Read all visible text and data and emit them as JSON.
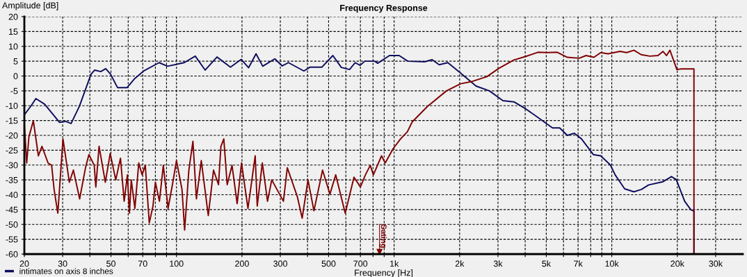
{
  "chart_data": {
    "type": "line",
    "title": "Frequency Response",
    "xlabel": "Frequency [Hz]",
    "ylabel": "Amplitude [dB]",
    "log": "x",
    "grid": true,
    "legend": "bottom left",
    "line_style": "solid",
    "marker": "none",
    "xlim": [
      20,
      40000
    ],
    "ylim": [
      -60,
      20
    ],
    "xticks": [
      20,
      30,
      {
        "value": 40,
        "label": null
      },
      50,
      {
        "value": 60,
        "label": null
      },
      70,
      {
        "value": 80,
        "label": null
      },
      {
        "value": 90,
        "label": null
      },
      100,
      200,
      300,
      {
        "value": 400,
        "label": null
      },
      500,
      {
        "value": 600,
        "label": null
      },
      700,
      {
        "value": 800,
        "label": null
      },
      {
        "value": 900,
        "label": null
      },
      {
        "value": 1000,
        "label": "1k"
      },
      {
        "value": 2000,
        "label": "2k"
      },
      {
        "value": 3000,
        "label": "3k"
      },
      {
        "value": 4000,
        "label": null
      },
      {
        "value": 5000,
        "label": "5k"
      },
      {
        "value": 6000,
        "label": null
      },
      {
        "value": 7000,
        "label": "7k"
      },
      {
        "value": 8000,
        "label": null
      },
      {
        "value": 9000,
        "label": null
      },
      {
        "value": 10000,
        "label": "10k"
      },
      {
        "value": 20000,
        "label": "20k"
      },
      {
        "value": 30000,
        "label": "30k"
      }
    ],
    "yticks": [
      -60,
      -55,
      -50,
      -45,
      -40,
      -35,
      -30,
      -25,
      -20,
      -15,
      -10,
      -5,
      0,
      5,
      10,
      15,
      20
    ],
    "ref_lines": [
      {
        "axis": "x",
        "value": 857,
        "label": "Gating",
        "color": "#800000"
      }
    ],
    "series": [
      {
        "name": "intimates on axis 8 inches",
        "color": "#0d0d5e",
        "x": [
          20,
          21.5,
          22.6,
          24.8,
          29,
          31,
          32.8,
          35.8,
          40.5,
          42.1,
          44.9,
          47.3,
          49.8,
          53.6,
          59.3,
          64,
          71,
          83.2,
          91,
          108.5,
          122,
          135.5,
          153.5,
          177,
          198.5,
          214.5,
          232,
          249,
          283,
          306,
          327,
          385,
          411,
          466,
          523,
          572,
          624,
          662,
          698,
          733,
          814,
          840,
          952,
          1055,
          1155,
          1380,
          1495,
          1610,
          1765,
          2020,
          2380,
          2740,
          3160,
          3550,
          4030,
          4570,
          5340,
          5760,
          6250,
          6730,
          7260,
          8240,
          8900,
          9860,
          10360,
          11460,
          12640,
          13680,
          14770,
          17200,
          18790,
          19780,
          21620,
          23050,
          23850,
          23850
        ],
        "values": [
          -13.1,
          -10,
          -7.6,
          -9.5,
          -15.6,
          -15.3,
          -16,
          -10.2,
          0.6,
          2,
          1.5,
          2.5,
          0.6,
          -3.9,
          -3.9,
          -1,
          1.8,
          4.5,
          3.3,
          4.5,
          6.7,
          2,
          6.4,
          3,
          5.6,
          2.8,
          7.5,
          3.3,
          5.8,
          3.4,
          4.5,
          1.7,
          3,
          3,
          6.9,
          2.9,
          2.2,
          4.5,
          3.6,
          5,
          5,
          4.3,
          6.9,
          6.9,
          5,
          4.8,
          5.5,
          3.8,
          4.5,
          1,
          -3.4,
          -5,
          -8.3,
          -8.7,
          -11.1,
          -13.9,
          -17.5,
          -17.5,
          -20,
          -19.3,
          -21.2,
          -26.5,
          -26.9,
          -30,
          -33.3,
          -38,
          -39,
          -38.2,
          -36.7,
          -35.6,
          -33.9,
          -34.9,
          -42.2,
          -45,
          -45.5,
          -60
        ]
      },
      {
        "color": "#800000",
        "x": [
          20,
          20.5,
          21,
          22,
          23.2,
          24.1,
          25.7,
          26.7,
          27.4,
          28.5,
          30.1,
          32.2,
          33.6,
          35.9,
          38.2,
          39.6,
          41.9,
          42.6,
          44.1,
          47.1,
          49.6,
          52.6,
          55.3,
          57.5,
          59.5,
          60.8,
          62,
          64.4,
          67.1,
          69.5,
          71.9,
          75,
          78,
          80,
          83.5,
          87,
          91.5,
          95.8,
          100,
          106,
          109,
          114,
          119,
          123.5,
          130,
          140,
          148,
          156,
          160,
          165,
          171,
          180,
          190,
          199,
          213,
          230,
          235,
          248,
          262,
          274,
          310,
          323,
          359,
          378,
          402,
          428,
          469,
          507,
          539,
          596,
          654,
          700,
          738,
          777,
          803,
          875,
          910,
          989,
          1070,
          1150,
          1210,
          1420,
          1740,
          2020,
          2290,
          2670,
          3030,
          3550,
          4030,
          4570,
          5060,
          5620,
          6250,
          7080,
          7620,
          8280,
          8900,
          9600,
          10920,
          11700,
          12640,
          13650,
          14950,
          16300,
          17200,
          17850,
          18500,
          19200,
          19900,
          20900,
          23850,
          23850
        ],
        "values": [
          -16,
          -29.3,
          -20.4,
          -15.1,
          -26.9,
          -23.7,
          -29.3,
          -30.1,
          -38.2,
          -46.2,
          -21.2,
          -35.8,
          -31.7,
          -41.4,
          -30.9,
          -26.5,
          -30.1,
          -37.4,
          -23.7,
          -35.8,
          -26.1,
          -35,
          -27.7,
          -42.2,
          -33.3,
          -46.2,
          -35,
          -44.6,
          -29.3,
          -33.3,
          -30.1,
          -49.5,
          -43.8,
          -35.8,
          -42.2,
          -30.1,
          -44.6,
          -36.6,
          -28.5,
          -38.2,
          -51.9,
          -31.7,
          -22,
          -41.4,
          -28.5,
          -47,
          -31.7,
          -36.6,
          -23.7,
          -21.2,
          -36.6,
          -30.1,
          -43,
          -29.3,
          -44.6,
          -26.9,
          -43.8,
          -29.3,
          -42.2,
          -35,
          -42.2,
          -30.9,
          -40.6,
          -47.9,
          -35,
          -45.4,
          -31.7,
          -39.8,
          -33.3,
          -46.2,
          -34.1,
          -37.4,
          -33.3,
          -30.1,
          -33.3,
          -26.9,
          -29.3,
          -24.5,
          -21.2,
          -18.8,
          -15.5,
          -10.3,
          -5,
          -2.6,
          -1.8,
          -0.2,
          2.6,
          5.4,
          6.6,
          8,
          7.9,
          8,
          6.3,
          6,
          6.9,
          6.3,
          7.9,
          7.5,
          8.3,
          7.9,
          8.7,
          7.2,
          6.7,
          6.9,
          8.3,
          6.9,
          8.7,
          5.4,
          2.2,
          2.4,
          2.4,
          -60
        ]
      }
    ]
  }
}
